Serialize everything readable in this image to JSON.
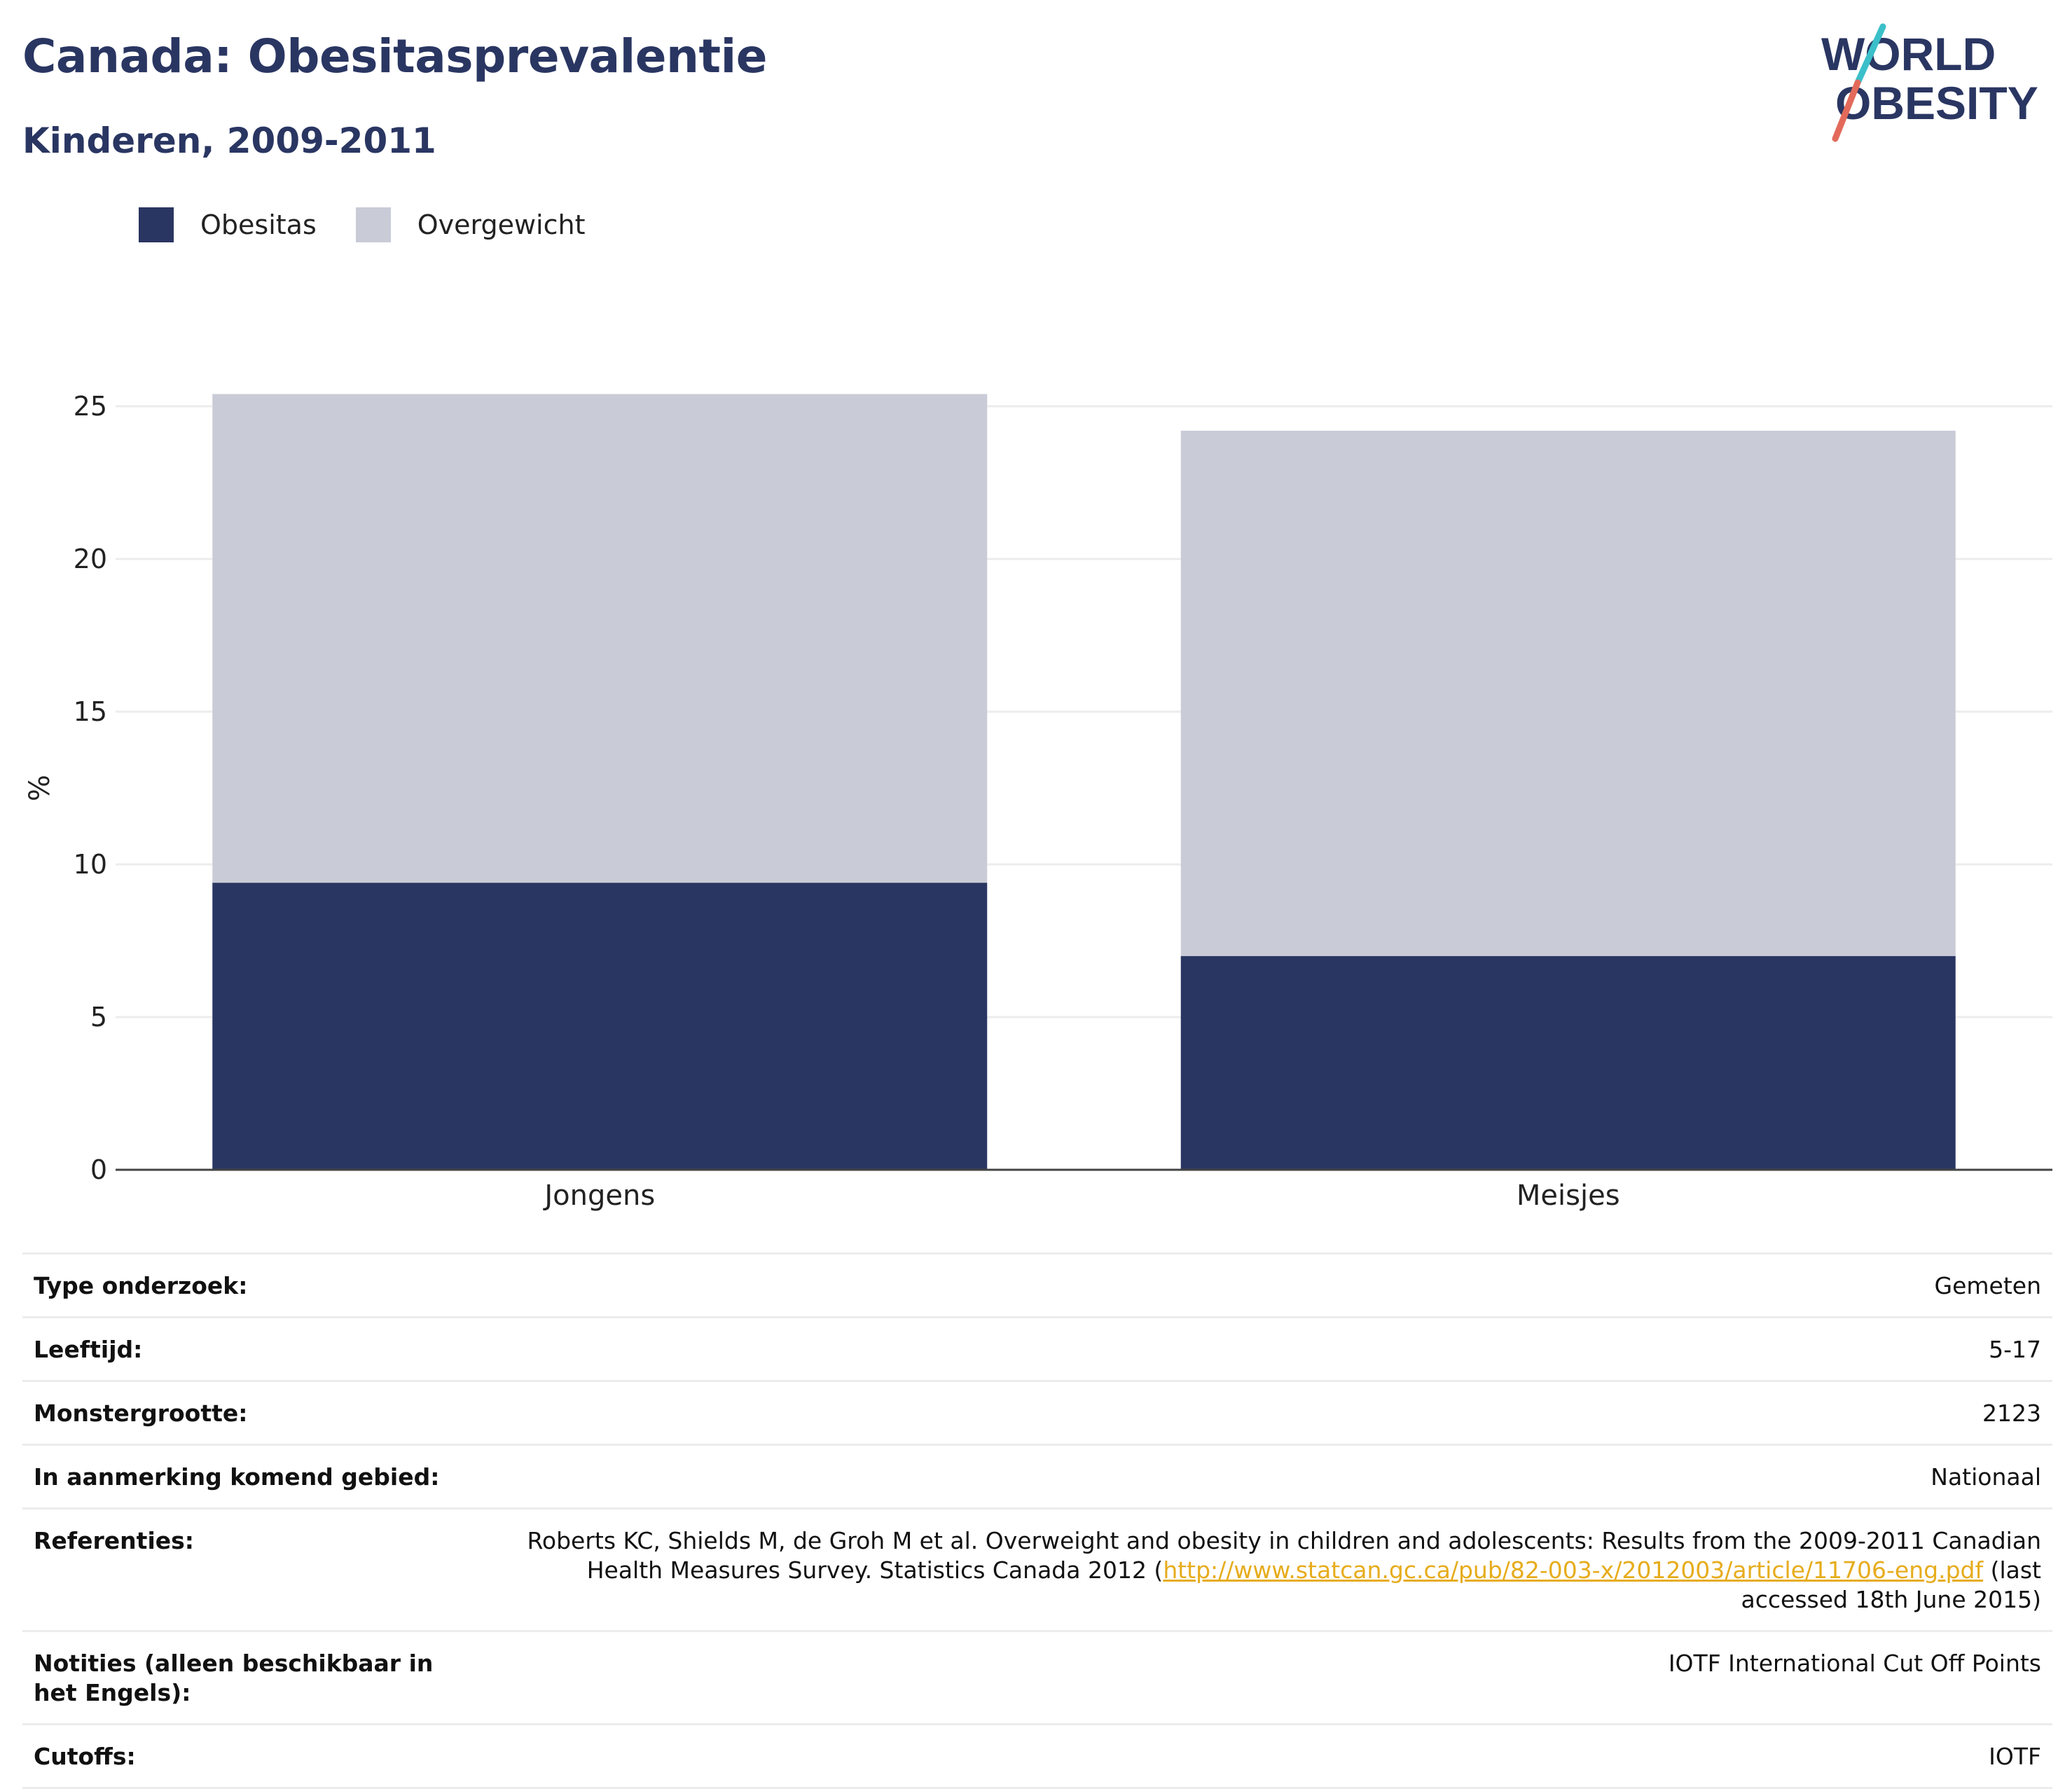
{
  "header": {
    "title": "Canada: Obesitasprevalentie",
    "subtitle": "Kinderen, 2009-2011"
  },
  "logo": {
    "line1": "WORLD",
    "line2": "OBESITY",
    "colors": {
      "text": "#2a3662",
      "slash_top": "#3bbfc9",
      "slash_bottom": "#e36a5a"
    }
  },
  "legend": [
    {
      "label": "Obesitas",
      "color": "#2a3662"
    },
    {
      "label": "Overgewicht",
      "color": "#c9cbd7"
    }
  ],
  "chart_data": {
    "type": "bar",
    "stacked": true,
    "categories": [
      "Jongens",
      "Meisjes"
    ],
    "series": [
      {
        "name": "Obesitas",
        "values": [
          9.4,
          7.0
        ],
        "color": "#2a3662"
      },
      {
        "name": "Overgewicht",
        "values": [
          16.0,
          17.2
        ],
        "color": "#c9cbd7"
      }
    ],
    "ylabel": "%",
    "ylim": [
      0,
      25
    ],
    "yticks": [
      0,
      5,
      10,
      15,
      20,
      25
    ],
    "grid": true
  },
  "info": [
    {
      "label": "Type onderzoek:",
      "value": "Gemeten"
    },
    {
      "label": "Leeftijd:",
      "value": "5-17"
    },
    {
      "label": "Monstergrootte:",
      "value": "2123"
    },
    {
      "label": "In aanmerking komend gebied:",
      "value": "Nationaal"
    },
    {
      "label": "Referenties:",
      "value_before": "Roberts KC, Shields M, de Groh M et al. Overweight and obesity in children and adolescents: Results from the 2009-2011 Canadian Health Measures Survey. Statistics Canada 2012 (",
      "link": "http://www.statcan.gc.ca/pub/82-003-x/2012003/article/11706-eng.pdf",
      "value_after": " (last accessed 18th June 2015)"
    },
    {
      "label": "Notities (alleen beschikbaar in het Engels):",
      "value": "IOTF International Cut Off Points"
    },
    {
      "label": "Cutoffs:",
      "value": "IOTF"
    }
  ]
}
